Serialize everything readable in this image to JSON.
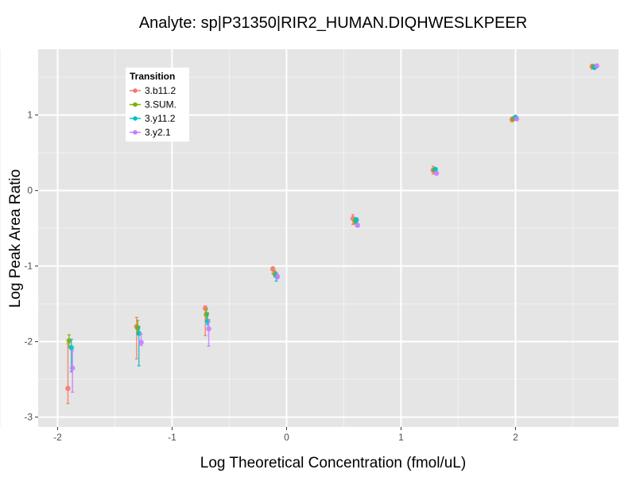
{
  "chart_data": {
    "type": "scatter",
    "title": "Analyte: sp|P31350|RIR2_HUMAN.DIQHWESLKPEER",
    "xlabel": "Log Theoretical Concentration (fmol/uL)",
    "ylabel": "Log Peak Area Ratio",
    "xlim": [
      -2.17,
      2.9
    ],
    "ylim": [
      -3.13,
      1.87
    ],
    "xticks": [
      -2,
      -1,
      0,
      1,
      2
    ],
    "yticks": [
      -3,
      -2,
      -1,
      0,
      1
    ],
    "grid": true,
    "legend": {
      "title": "Transition",
      "placement": "top-left"
    },
    "series": [
      {
        "name": "3.b11.2",
        "color": "#F8766D",
        "x": [
          -1.91,
          -1.31,
          -0.71,
          -0.12,
          0.58,
          1.28,
          1.97,
          2.67
        ],
        "y": [
          -2.62,
          -1.8,
          -1.56,
          -1.04,
          -0.37,
          0.27,
          0.94,
          1.64
        ],
        "ymin": [
          -2.82,
          -2.23,
          -1.92,
          -1.1,
          -0.45,
          0.22,
          0.91,
          1.61
        ],
        "ymax": [
          -2.03,
          -1.68,
          -1.53,
          -1.01,
          -0.32,
          0.32,
          0.96,
          1.67
        ]
      },
      {
        "name": "3.SUM.",
        "color": "#7CAE00",
        "x": [
          -1.9,
          -1.3,
          -0.7,
          -0.1,
          0.6,
          1.29,
          1.98,
          2.68
        ],
        "y": [
          -1.99,
          -1.82,
          -1.64,
          -1.11,
          -0.41,
          0.27,
          0.95,
          1.64
        ],
        "ymin": [
          -2.07,
          -1.9,
          -1.72,
          -1.14,
          -0.44,
          0.25,
          0.93,
          1.62
        ],
        "ymax": [
          -1.91,
          -1.72,
          -1.57,
          -1.07,
          -0.38,
          0.29,
          0.97,
          1.66
        ]
      },
      {
        "name": "3.y11.2",
        "color": "#00BFC4",
        "x": [
          -1.88,
          -1.29,
          -0.69,
          -0.09,
          0.61,
          1.3,
          2.0,
          2.69
        ],
        "y": [
          -2.08,
          -1.89,
          -1.73,
          -1.13,
          -0.39,
          0.28,
          0.97,
          1.63
        ],
        "ymin": [
          -2.4,
          -2.32,
          -1.78,
          -1.2,
          -0.43,
          0.26,
          0.95,
          1.61
        ],
        "ymax": [
          -1.97,
          -1.8,
          -1.62,
          -1.09,
          -0.36,
          0.3,
          0.99,
          1.65
        ]
      },
      {
        "name": "3.y2.1",
        "color": "#C77CFF",
        "x": [
          -1.87,
          -1.27,
          -0.68,
          -0.08,
          0.62,
          1.31,
          2.01,
          2.71
        ],
        "y": [
          -2.35,
          -2.01,
          -1.83,
          -1.14,
          -0.46,
          0.23,
          0.95,
          1.65
        ],
        "ymin": [
          -2.67,
          -2.05,
          -2.06,
          -1.17,
          -0.48,
          0.21,
          0.93,
          1.63
        ],
        "ymax": [
          -2.12,
          -1.9,
          -1.71,
          -1.11,
          -0.44,
          0.25,
          0.97,
          1.67
        ]
      }
    ]
  }
}
